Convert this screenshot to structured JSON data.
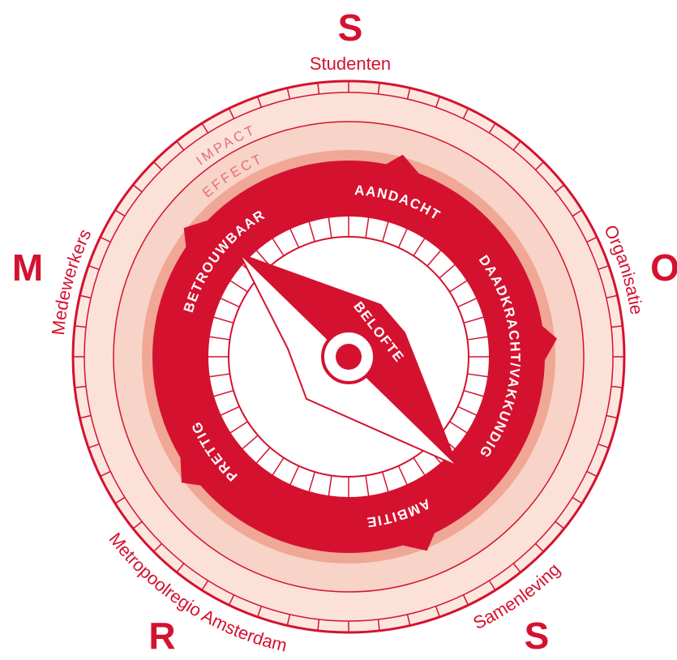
{
  "compass": {
    "directions": [
      {
        "letter": "S",
        "label": "Studenten"
      },
      {
        "letter": "M",
        "label": "Medewerkers"
      },
      {
        "letter": "O",
        "label": "Organisatie"
      },
      {
        "letter": "R",
        "label": "Metropoolregio Amsterdam"
      },
      {
        "letter": "S",
        "label": "Samenleving"
      }
    ],
    "rings": [
      "IMPACT",
      "EFFECT"
    ],
    "values": [
      "AANDACHT",
      "DAADKRACHT/VAKKUNDIG",
      "AMBITIE",
      "PRETTIG",
      "BETROUWBAAR"
    ],
    "center": "BELOFTE"
  }
}
